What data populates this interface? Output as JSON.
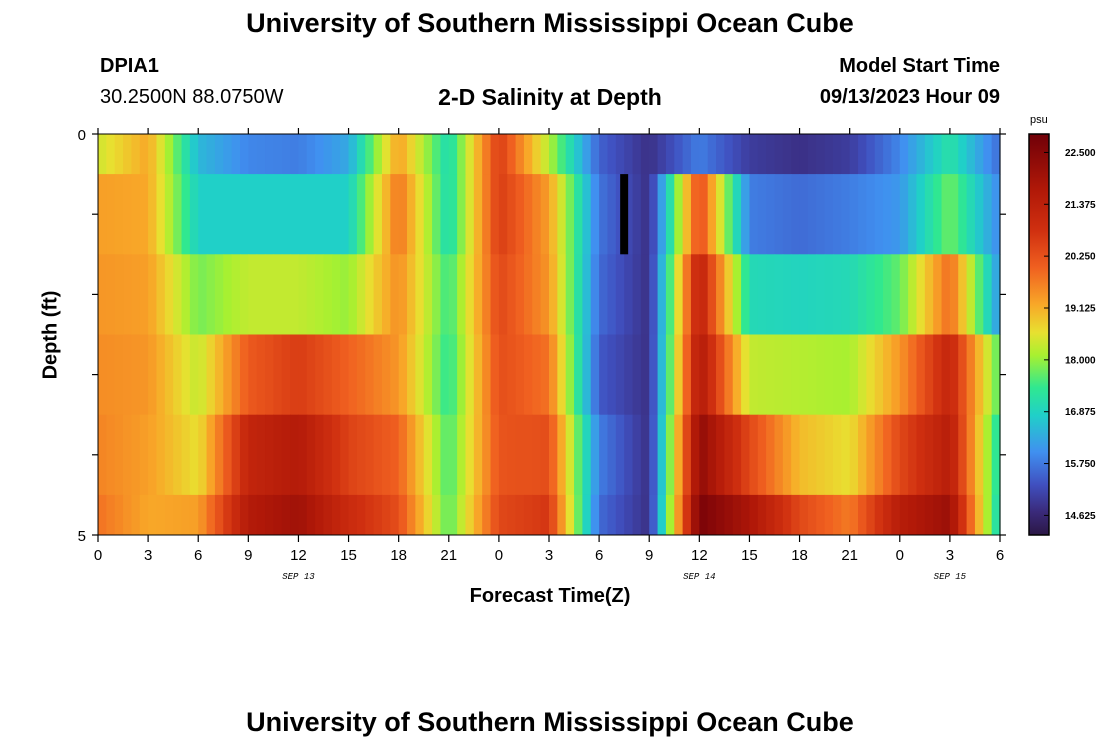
{
  "header": {
    "title": "University of Southern Mississippi Ocean Cube",
    "station_id": "DPIA1",
    "coordinates": "30.2500N  88.0750W",
    "subtitle": "2-D Salinity at Depth",
    "model_start_label": "Model Start Time",
    "model_start_value": "09/13/2023 Hour 09"
  },
  "footer": {
    "title": "University of Southern Mississippi Ocean Cube"
  },
  "chart_data": {
    "type": "heatmap",
    "title": "2-D Salinity at Depth",
    "xlabel": "Forecast Time(Z)",
    "ylabel": "Depth (ft)",
    "x_start_hour": 0,
    "x_end_hour": 54,
    "x_ticks": [
      {
        "hour": 0,
        "label": "0"
      },
      {
        "hour": 3,
        "label": "3"
      },
      {
        "hour": 6,
        "label": "6"
      },
      {
        "hour": 9,
        "label": "9"
      },
      {
        "hour": 12,
        "label": "12"
      },
      {
        "hour": 15,
        "label": "15"
      },
      {
        "hour": 18,
        "label": "18"
      },
      {
        "hour": 21,
        "label": "21"
      },
      {
        "hour": 24,
        "label": "0"
      },
      {
        "hour": 27,
        "label": "3"
      },
      {
        "hour": 30,
        "label": "6"
      },
      {
        "hour": 33,
        "label": "9"
      },
      {
        "hour": 36,
        "label": "12"
      },
      {
        "hour": 39,
        "label": "15"
      },
      {
        "hour": 42,
        "label": "18"
      },
      {
        "hour": 45,
        "label": "21"
      },
      {
        "hour": 48,
        "label": "0"
      },
      {
        "hour": 51,
        "label": "3"
      },
      {
        "hour": 54,
        "label": "6"
      }
    ],
    "date_labels": [
      {
        "hour": 12,
        "label": "SEP 13"
      },
      {
        "hour": 36,
        "label": "SEP 14"
      },
      {
        "hour": 51,
        "label": "SEP 15"
      }
    ],
    "y_ticks": [
      {
        "depth": 0,
        "label": "0"
      },
      {
        "depth": 5,
        "label": "5"
      }
    ],
    "ylim": [
      0,
      5
    ],
    "depth_levels": [
      0,
      0.5,
      1.5,
      2.5,
      3.5,
      4.5
    ],
    "column_hours": [
      0,
      3,
      6,
      9,
      12,
      15,
      18,
      21,
      24,
      27,
      30,
      33,
      36,
      39,
      42,
      45,
      48,
      51,
      54
    ],
    "salinity": [
      [
        18.4,
        19.2,
        16.5,
        15.9,
        15.8,
        16.3,
        19.3,
        17.0,
        20.6,
        18.2,
        15.5,
        14.8,
        15.8,
        15.0,
        14.8,
        15.0,
        15.9,
        17.2,
        15.6
      ],
      [
        19.3,
        19.2,
        16.8,
        16.8,
        16.8,
        16.8,
        19.8,
        17.0,
        20.6,
        19.3,
        15.7,
        14.8,
        20.4,
        15.8,
        15.6,
        15.8,
        16.1,
        17.8,
        15.9
      ],
      [
        19.4,
        19.3,
        17.8,
        18.3,
        18.3,
        18.0,
        19.5,
        17.4,
        20.4,
        19.4,
        15.6,
        14.8,
        21.4,
        17.0,
        16.9,
        17.0,
        17.7,
        19.9,
        16.0
      ],
      [
        19.5,
        19.4,
        18.3,
        20.1,
        20.6,
        20.0,
        19.4,
        17.3,
        20.3,
        19.8,
        15.4,
        14.8,
        21.7,
        18.3,
        18.2,
        18.1,
        19.4,
        21.2,
        17.5
      ],
      [
        19.6,
        19.3,
        18.6,
        21.2,
        21.6,
        20.5,
        20.0,
        17.5,
        20.2,
        20.3,
        15.8,
        14.8,
        22.3,
        20.4,
        19.0,
        18.6,
        20.4,
        21.5,
        17.0
      ],
      [
        19.8,
        19.2,
        19.3,
        21.6,
        22.0,
        21.0,
        20.3,
        17.6,
        20.4,
        20.7,
        15.6,
        14.8,
        22.7,
        21.8,
        20.4,
        19.7,
        21.5,
        22.1,
        16.8
      ]
    ],
    "marker": {
      "hour": 31.5,
      "depth_from": 0.5,
      "depth_to": 1.5,
      "color": "#000000"
    },
    "colorbar": {
      "unit": "psu",
      "range": [
        14.2,
        22.9
      ],
      "ticks": [
        22.5,
        21.375,
        20.25,
        19.125,
        18.0,
        16.875,
        15.75,
        14.625
      ],
      "tick_labels": [
        "22.500",
        "21.375",
        "20.250",
        "19.125",
        "18.000",
        "16.875",
        "15.750",
        "14.625"
      ],
      "color_stops": [
        {
          "value": 14.2,
          "color": "#2b1745"
        },
        {
          "value": 14.7,
          "color": "#3a2a7a"
        },
        {
          "value": 15.3,
          "color": "#4050c0"
        },
        {
          "value": 16.0,
          "color": "#4090f0"
        },
        {
          "value": 16.8,
          "color": "#20d0c8"
        },
        {
          "value": 17.4,
          "color": "#30e890"
        },
        {
          "value": 18.1,
          "color": "#a8f030"
        },
        {
          "value": 18.6,
          "color": "#e8e030"
        },
        {
          "value": 19.2,
          "color": "#f8a828"
        },
        {
          "value": 20.0,
          "color": "#f06020"
        },
        {
          "value": 20.8,
          "color": "#d03010"
        },
        {
          "value": 21.7,
          "color": "#b01808"
        },
        {
          "value": 22.9,
          "color": "#700008"
        }
      ]
    }
  }
}
